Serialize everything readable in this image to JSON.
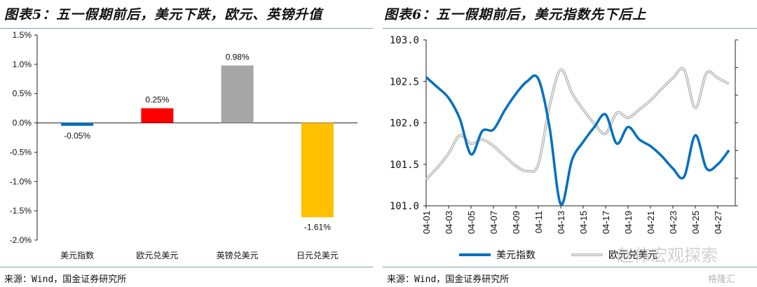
{
  "left_panel": {
    "title": "图表5：五一假期前后，美元下跌，欧元、英镑升值",
    "source": "来源：Wind，国金证券研究所"
  },
  "right_panel": {
    "title": "图表6：五一假期前后，美元指数先下后上",
    "source": "来源：Wind，国金证券研究所"
  },
  "watermark": {
    "text": "赵伟宏观探索",
    "logo_text": "格隆汇"
  },
  "chart_data": [
    {
      "type": "bar",
      "categories": [
        "美元指数",
        "欧元兑美元",
        "英镑兑美元",
        "日元兑美元"
      ],
      "values": [
        -0.05,
        0.25,
        0.98,
        -1.61
      ],
      "data_labels": [
        "-0.05%",
        "0.25%",
        "0.98%",
        "-1.61%"
      ],
      "colors": [
        "#0070c0",
        "#ff0000",
        "#a6a6a6",
        "#ffc000"
      ],
      "ylim": [
        -2.0,
        1.5
      ],
      "yticks": [
        "-2.0%",
        "-1.5%",
        "-1.0%",
        "-0.5%",
        "0.0%",
        "0.5%",
        "1.0%",
        "1.5%"
      ],
      "ytick_values": [
        -2.0,
        -1.5,
        -1.0,
        -0.5,
        0.0,
        0.5,
        1.0,
        1.5
      ],
      "grid": false
    },
    {
      "type": "line",
      "x": [
        "04-01",
        "04-02",
        "04-03",
        "04-04",
        "04-05",
        "04-06",
        "04-07",
        "04-08",
        "04-09",
        "04-10",
        "04-11",
        "04-12",
        "04-13",
        "04-14",
        "04-15",
        "04-16",
        "04-17",
        "04-18",
        "04-19",
        "04-20",
        "04-21",
        "04-22",
        "04-23",
        "04-24",
        "04-25",
        "04-26",
        "04-27",
        "04-28"
      ],
      "xticks": [
        "04-01",
        "04-03",
        "04-05",
        "04-07",
        "04-09",
        "04-11",
        "04-13",
        "04-15",
        "04-17",
        "04-19",
        "04-21",
        "04-23",
        "04-25",
        "04-27"
      ],
      "ylim": [
        101.0,
        103.0
      ],
      "yticks": [
        "101.0",
        "101.5",
        "102.0",
        "102.5",
        "103.0"
      ],
      "ytick_values": [
        101.0,
        101.5,
        102.0,
        102.5,
        103.0
      ],
      "right_axis": "unlabeled ticks",
      "legend": "bottom",
      "grid": false,
      "series": [
        {
          "name": "美元指数",
          "color": "#0070c0",
          "axis": "left",
          "values": [
            102.55,
            102.43,
            102.3,
            102.05,
            101.62,
            101.9,
            101.92,
            102.15,
            102.35,
            102.5,
            102.53,
            101.95,
            101.02,
            101.55,
            101.77,
            101.95,
            102.1,
            101.75,
            101.95,
            101.8,
            101.72,
            101.6,
            101.45,
            101.35,
            101.85,
            101.45,
            101.5,
            101.67
          ]
        },
        {
          "name": "欧元兑美元",
          "color": "#a6a6a6",
          "axis": "right",
          "style": "double-line",
          "values": [
            101.32,
            101.46,
            101.63,
            101.85,
            101.75,
            101.8,
            101.72,
            101.6,
            101.48,
            101.42,
            101.5,
            102.2,
            102.64,
            102.36,
            102.16,
            101.99,
            101.87,
            102.12,
            102.06,
            102.16,
            102.27,
            102.41,
            102.54,
            102.64,
            102.18,
            102.6,
            102.54,
            102.47
          ]
        }
      ]
    }
  ]
}
